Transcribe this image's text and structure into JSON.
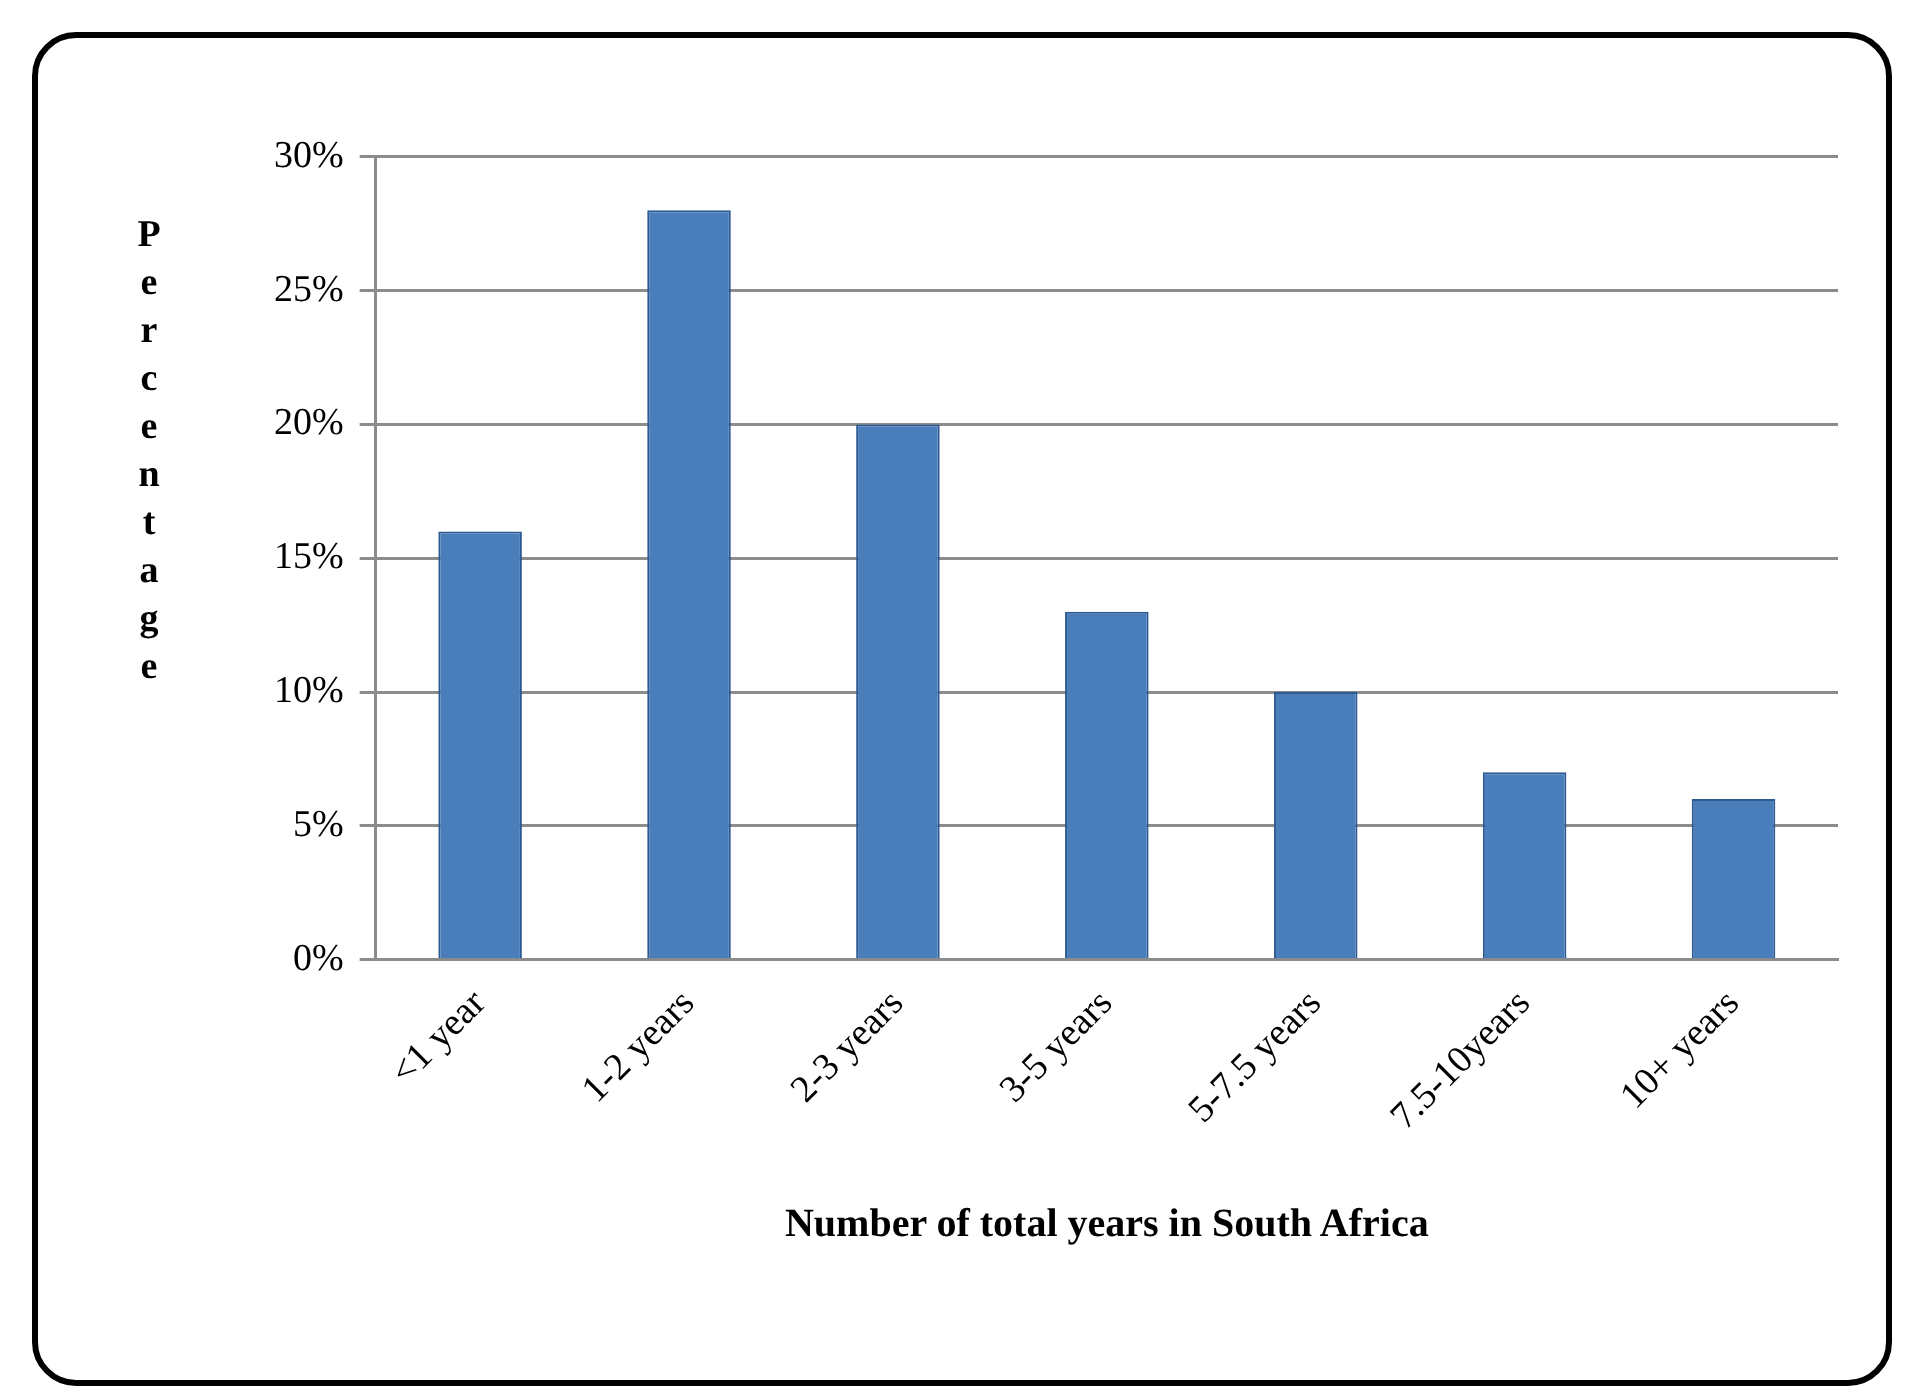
{
  "chart_data": {
    "type": "bar",
    "xlabel": "Number of total years in South Africa",
    "ylabel": "Percentage",
    "categories": [
      "<1 year",
      "1-2 years",
      "2-3 years",
      "3-5 years",
      "5-7.5 years",
      "7.5-10years",
      "10+ years"
    ],
    "values": [
      16,
      28,
      20,
      13,
      10,
      7,
      6
    ],
    "color": "#4a7ebb",
    "ylim": [
      0,
      30
    ],
    "yticks": [
      {
        "value": 0,
        "label": "0%"
      },
      {
        "value": 5,
        "label": "5%"
      },
      {
        "value": 10,
        "label": "10%"
      },
      {
        "value": 15,
        "label": "15%"
      },
      {
        "value": 20,
        "label": "20%"
      },
      {
        "value": 25,
        "label": "25%"
      },
      {
        "value": 30,
        "label": "30%"
      }
    ],
    "grid": "y",
    "legend": false
  }
}
